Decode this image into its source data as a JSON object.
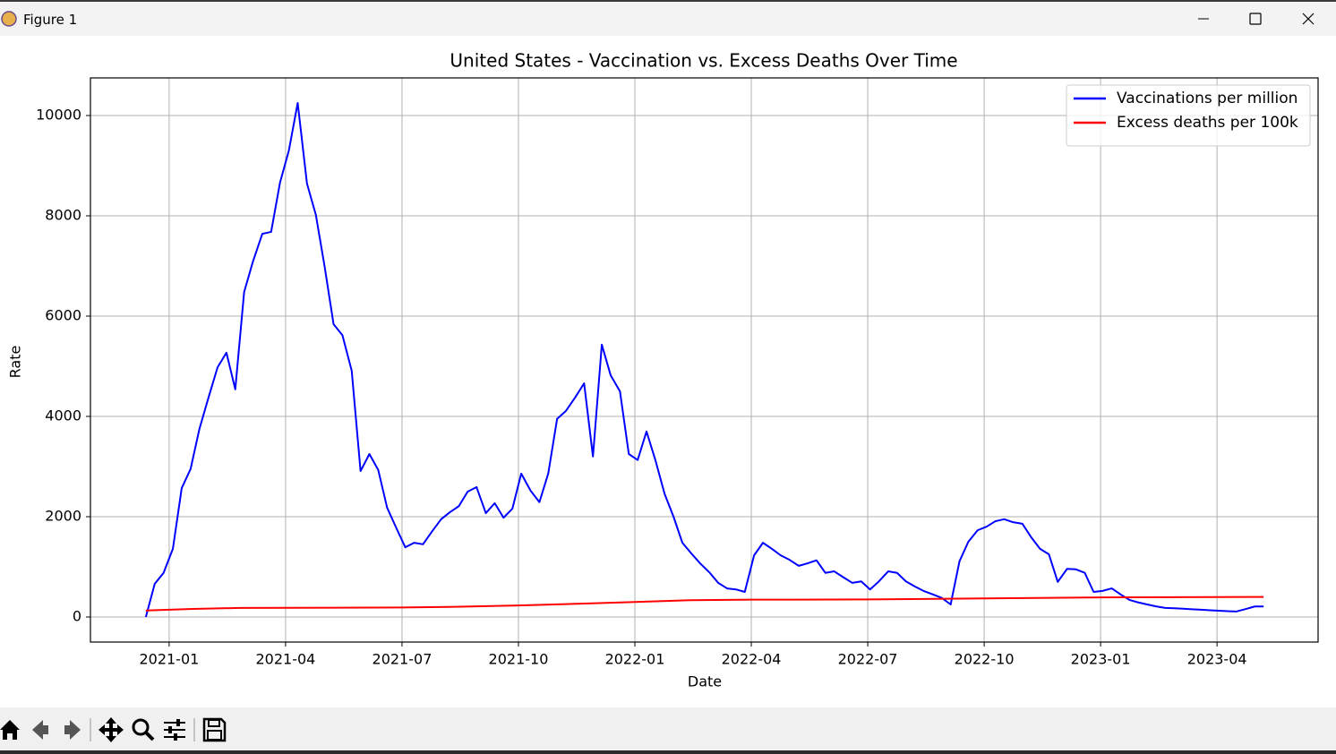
{
  "window": {
    "title": "Figure 1"
  },
  "chart_data": {
    "type": "line",
    "title": "United States - Vaccination vs. Excess Deaths Over Time",
    "xlabel": "Date",
    "ylabel": "Rate",
    "xlim": [
      2020.831,
      2023.467
    ],
    "ylim": [
      -500,
      10750
    ],
    "xticks": [
      {
        "value": 2021.0,
        "label": "2021-01"
      },
      {
        "value": 2021.25,
        "label": "2021-04"
      },
      {
        "value": 2021.5,
        "label": "2021-07"
      },
      {
        "value": 2021.75,
        "label": "2021-10"
      },
      {
        "value": 2022.0,
        "label": "2022-01"
      },
      {
        "value": 2022.25,
        "label": "2022-04"
      },
      {
        "value": 2022.5,
        "label": "2022-07"
      },
      {
        "value": 2022.75,
        "label": "2022-10"
      },
      {
        "value": 2023.0,
        "label": "2023-01"
      },
      {
        "value": 2023.25,
        "label": "2023-04"
      }
    ],
    "yticks": [
      0,
      2000,
      4000,
      6000,
      8000,
      10000
    ],
    "grid": true,
    "legend": "upper right",
    "series": [
      {
        "name": "Vaccinations per million",
        "color": "#0000ff",
        "x": [
          2020.95,
          2020.969,
          2020.988,
          2021.008,
          2021.027,
          2021.046,
          2021.065,
          2021.084,
          2021.104,
          2021.123,
          2021.142,
          2021.161,
          2021.18,
          2021.2,
          2021.219,
          2021.238,
          2021.257,
          2021.276,
          2021.296,
          2021.315,
          2021.334,
          2021.353,
          2021.372,
          2021.392,
          2021.411,
          2021.43,
          2021.449,
          2021.468,
          2021.488,
          2021.507,
          2021.526,
          2021.545,
          2021.564,
          2021.584,
          2021.603,
          2021.622,
          2021.641,
          2021.66,
          2021.68,
          2021.699,
          2021.718,
          2021.737,
          2021.756,
          2021.776,
          2021.795,
          2021.814,
          2021.833,
          2021.852,
          2021.872,
          2021.891,
          2021.91,
          2021.929,
          2021.948,
          2021.968,
          2021.987,
          2022.006,
          2022.025,
          2022.044,
          2022.064,
          2022.083,
          2022.102,
          2022.121,
          2022.14,
          2022.16,
          2022.179,
          2022.198,
          2022.217,
          2022.236,
          2022.256,
          2022.275,
          2022.294,
          2022.313,
          2022.332,
          2022.352,
          2022.371,
          2022.39,
          2022.409,
          2022.428,
          2022.448,
          2022.467,
          2022.486,
          2022.505,
          2022.524,
          2022.544,
          2022.563,
          2022.582,
          2022.601,
          2022.62,
          2022.64,
          2022.659,
          2022.678,
          2022.697,
          2022.716,
          2022.736,
          2022.755,
          2022.774,
          2022.793,
          2022.812,
          2022.832,
          2022.851,
          2022.87,
          2022.889,
          2022.908,
          2022.928,
          2022.947,
          2022.966,
          2022.985,
          2023.004,
          2023.024,
          2023.043,
          2023.062,
          2023.081,
          2023.1,
          2023.12,
          2023.139,
          2023.158,
          2023.177,
          2023.196,
          2023.216,
          2023.235,
          2023.254,
          2023.273,
          2023.292,
          2023.312,
          2023.331,
          2023.35
        ],
        "values": [
          0,
          660,
          880,
          1360,
          2570,
          2950,
          3750,
          4360,
          4980,
          5270,
          4540,
          6480,
          7090,
          7640,
          7680,
          8660,
          9300,
          10250,
          8640,
          8020,
          6980,
          5840,
          5620,
          4910,
          2910,
          3250,
          2930,
          2180,
          1770,
          1390,
          1480,
          1450,
          1700,
          1950,
          2090,
          2210,
          2500,
          2590,
          2070,
          2270,
          1980,
          2160,
          2860,
          2520,
          2290,
          2860,
          3950,
          4110,
          4380,
          4660,
          3200,
          5430,
          4820,
          4500,
          3250,
          3130,
          3700,
          3130,
          2450,
          2000,
          1480,
          1270,
          1070,
          890,
          680,
          570,
          550,
          500,
          1230,
          1480,
          1360,
          1230,
          1140,
          1020,
          1070,
          1130,
          880,
          910,
          790,
          680,
          710,
          550,
          710,
          910,
          880,
          710,
          610,
          520,
          450,
          380,
          250,
          1110,
          1500,
          1730,
          1800,
          1910,
          1950,
          1890,
          1860,
          1590,
          1360,
          1250,
          700,
          960,
          950,
          880,
          500,
          520,
          570,
          450,
          340,
          290,
          250,
          210,
          180,
          175,
          165,
          155,
          145,
          135,
          125,
          115,
          110,
          160,
          210,
          210
        ]
      },
      {
        "name": "Excess deaths per 100k",
        "color": "#ff0000",
        "x": [
          2020.95,
          2021.05,
          2021.15,
          2021.5,
          2021.6,
          2021.75,
          2021.9,
          2022.0,
          2022.12,
          2022.25,
          2022.5,
          2022.75,
          2023.0,
          2023.35
        ],
        "values": [
          130,
          160,
          180,
          190,
          200,
          230,
          270,
          300,
          335,
          345,
          350,
          370,
          390,
          400
        ]
      }
    ]
  }
}
